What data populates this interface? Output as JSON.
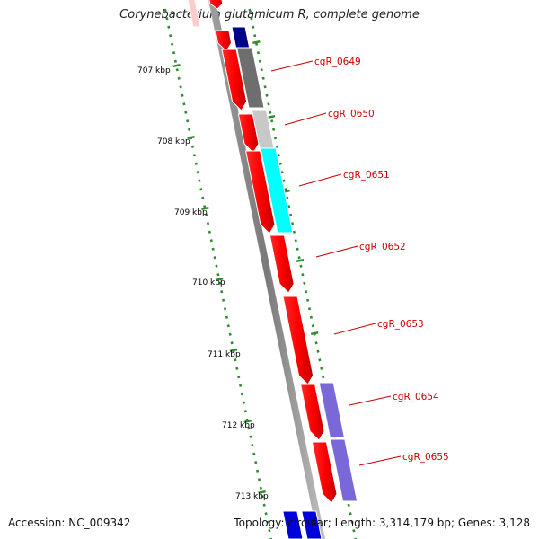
{
  "title": "Corynebacterium glutamicum R, complete genome",
  "footer": {
    "accession": "Accession: NC_009342",
    "summary": "Topology: circular; Length: 3,314,179 bp; Genes: 3,128"
  },
  "colors": {
    "forward_genes": "#ff0000",
    "backbone": "#888888",
    "tick_marks": "#2e8b2e",
    "label_text": "#cc0000",
    "cog_gray": "#6e6e6e",
    "cog_lightgray": "#c8c8c8",
    "cog_cyan": "#00ffff",
    "cog_purple": "#7b68d8",
    "cog_navy": "#000088",
    "cog_blue": "#0000dd"
  },
  "scale_labels": [
    "707 kbp",
    "708 kbp",
    "709 kbp",
    "710 kbp",
    "711 kbp",
    "712 kbp",
    "713 kbp"
  ],
  "gene_labels": [
    "cgR_0649",
    "cgR_0650",
    "cgR_0651",
    "cgR_0652",
    "cgR_0653",
    "cgR_0654",
    "cgR_0655"
  ]
}
